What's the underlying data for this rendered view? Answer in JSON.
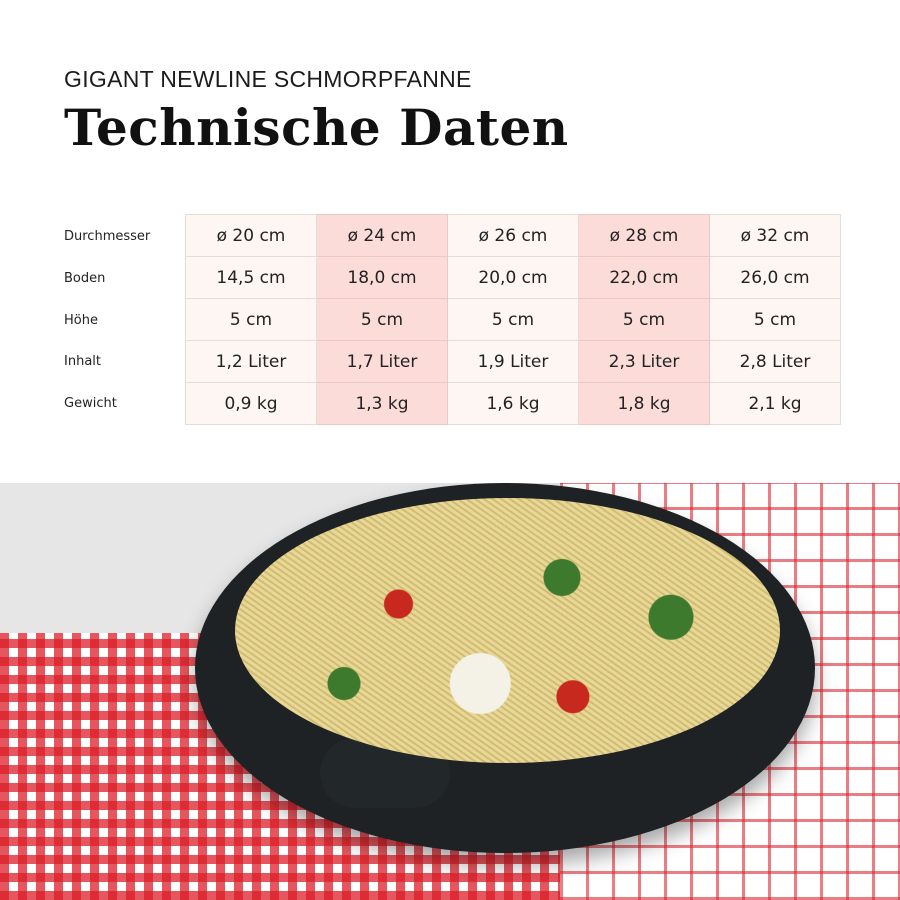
{
  "header": {
    "subtitle": "GIGANT NEWLINE SCHMORPFANNE",
    "title": "Technische Daten"
  },
  "table": {
    "row_labels": [
      "Durchmesser",
      "Boden",
      "Höhe",
      "Inhalt",
      "Gewicht"
    ],
    "rows": [
      [
        "ø 20 cm",
        "ø 24 cm",
        "ø 26 cm",
        "ø 28 cm",
        "ø 32 cm"
      ],
      [
        "14,5 cm",
        "18,0 cm",
        "20,0 cm",
        "22,0 cm",
        "26,0 cm"
      ],
      [
        "5 cm",
        "5 cm",
        "5 cm",
        "5 cm",
        "5 cm"
      ],
      [
        "1,2 Liter",
        "1,7 Liter",
        "1,9 Liter",
        "2,3 Liter",
        "2,8 Liter"
      ],
      [
        "0,9 kg",
        "1,3 kg",
        "1,6 kg",
        "1,8 kg",
        "2,1 kg"
      ]
    ],
    "colors": {
      "cell": "#fdf6f3",
      "highlight": "#fbdcd8"
    }
  }
}
